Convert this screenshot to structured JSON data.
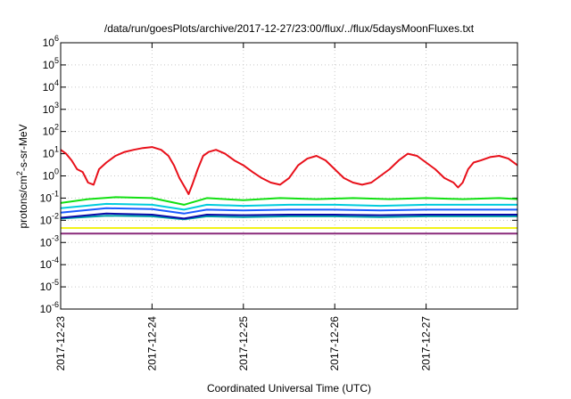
{
  "chart_data": {
    "type": "line",
    "title": "/data/run/goesPlots/archive/2017-12-27/23:00/flux/../flux/5daysMoonFluxes.txt",
    "xlabel": "Coordinated Universal Time (UTC)",
    "ylabel": {
      "base": "protons/cm",
      "sup": "2",
      "rest": "-s-sr-MeV"
    },
    "y_scale": "log",
    "ylim": [
      1e-06,
      1000000.0
    ],
    "y_ticks": [
      {
        "value": 1e-06,
        "base": "10",
        "exp": "-6"
      },
      {
        "value": 1e-05,
        "base": "10",
        "exp": "-5"
      },
      {
        "value": 0.0001,
        "base": "10",
        "exp": "-4"
      },
      {
        "value": 0.001,
        "base": "10",
        "exp": "-3"
      },
      {
        "value": 0.01,
        "base": "10",
        "exp": "-2"
      },
      {
        "value": 0.1,
        "base": "10",
        "exp": "-1"
      },
      {
        "value": 1,
        "base": "10",
        "exp": "0"
      },
      {
        "value": 10,
        "base": "10",
        "exp": "1"
      },
      {
        "value": 100,
        "base": "10",
        "exp": "2"
      },
      {
        "value": 1000,
        "base": "10",
        "exp": "3"
      },
      {
        "value": 10000,
        "base": "10",
        "exp": "4"
      },
      {
        "value": 100000,
        "base": "10",
        "exp": "5"
      },
      {
        "value": 1000000,
        "base": "10",
        "exp": "6"
      }
    ],
    "xlim": [
      0,
      5
    ],
    "x_ticks": [
      {
        "value": 0,
        "label": "2017-12-23"
      },
      {
        "value": 1,
        "label": "2017-12-24"
      },
      {
        "value": 2,
        "label": "2017-12-25"
      },
      {
        "value": 3,
        "label": "2017-12-26"
      },
      {
        "value": 4,
        "label": "2017-12-27"
      }
    ],
    "grid": true,
    "series": [
      {
        "color": "#e8101a",
        "points": [
          [
            0.0,
            15
          ],
          [
            0.06,
            10
          ],
          [
            0.12,
            5
          ],
          [
            0.18,
            2
          ],
          [
            0.24,
            1.5
          ],
          [
            0.3,
            0.5
          ],
          [
            0.36,
            0.4
          ],
          [
            0.42,
            2
          ],
          [
            0.5,
            4
          ],
          [
            0.6,
            8
          ],
          [
            0.7,
            12
          ],
          [
            0.8,
            15
          ],
          [
            0.9,
            18
          ],
          [
            1.0,
            20
          ],
          [
            1.1,
            15
          ],
          [
            1.18,
            8
          ],
          [
            1.24,
            3
          ],
          [
            1.3,
            0.8
          ],
          [
            1.36,
            0.3
          ],
          [
            1.4,
            0.15
          ],
          [
            1.44,
            0.4
          ],
          [
            1.5,
            2
          ],
          [
            1.56,
            8
          ],
          [
            1.62,
            12
          ],
          [
            1.7,
            15
          ],
          [
            1.8,
            10
          ],
          [
            1.9,
            5
          ],
          [
            2.0,
            3
          ],
          [
            2.1,
            1.5
          ],
          [
            2.2,
            0.8
          ],
          [
            2.3,
            0.5
          ],
          [
            2.4,
            0.4
          ],
          [
            2.5,
            0.8
          ],
          [
            2.6,
            3
          ],
          [
            2.7,
            6
          ],
          [
            2.8,
            8
          ],
          [
            2.9,
            5
          ],
          [
            3.0,
            2
          ],
          [
            3.1,
            0.8
          ],
          [
            3.2,
            0.5
          ],
          [
            3.3,
            0.4
          ],
          [
            3.4,
            0.5
          ],
          [
            3.5,
            1
          ],
          [
            3.6,
            2
          ],
          [
            3.7,
            5
          ],
          [
            3.8,
            10
          ],
          [
            3.9,
            8
          ],
          [
            4.0,
            4
          ],
          [
            4.1,
            2
          ],
          [
            4.2,
            0.8
          ],
          [
            4.3,
            0.5
          ],
          [
            4.35,
            0.3
          ],
          [
            4.4,
            0.5
          ],
          [
            4.46,
            2
          ],
          [
            4.52,
            4
          ],
          [
            4.6,
            5
          ],
          [
            4.7,
            7
          ],
          [
            4.8,
            8
          ],
          [
            4.9,
            6
          ],
          [
            5.0,
            3
          ]
        ]
      },
      {
        "color": "#12e012",
        "points": [
          [
            0.0,
            0.06
          ],
          [
            0.3,
            0.09
          ],
          [
            0.6,
            0.11
          ],
          [
            1.0,
            0.1
          ],
          [
            1.35,
            0.05
          ],
          [
            1.6,
            0.1
          ],
          [
            2.0,
            0.08
          ],
          [
            2.4,
            0.1
          ],
          [
            2.8,
            0.09
          ],
          [
            3.2,
            0.1
          ],
          [
            3.6,
            0.09
          ],
          [
            4.0,
            0.1
          ],
          [
            4.4,
            0.09
          ],
          [
            4.8,
            0.1
          ],
          [
            5.0,
            0.09
          ]
        ]
      },
      {
        "color": "#00ccdd",
        "points": [
          [
            0.0,
            0.035
          ],
          [
            0.5,
            0.055
          ],
          [
            1.0,
            0.05
          ],
          [
            1.35,
            0.03
          ],
          [
            1.6,
            0.05
          ],
          [
            2.0,
            0.045
          ],
          [
            2.5,
            0.05
          ],
          [
            3.0,
            0.05
          ],
          [
            3.5,
            0.045
          ],
          [
            4.0,
            0.05
          ],
          [
            4.5,
            0.05
          ],
          [
            5.0,
            0.05
          ]
        ]
      },
      {
        "color": "#1a5aff",
        "points": [
          [
            0.0,
            0.022
          ],
          [
            0.5,
            0.035
          ],
          [
            1.0,
            0.032
          ],
          [
            1.35,
            0.02
          ],
          [
            1.6,
            0.03
          ],
          [
            2.0,
            0.028
          ],
          [
            2.5,
            0.03
          ],
          [
            3.0,
            0.03
          ],
          [
            3.5,
            0.028
          ],
          [
            4.0,
            0.03
          ],
          [
            4.5,
            0.03
          ],
          [
            5.0,
            0.03
          ]
        ]
      },
      {
        "color": "#00a0a8",
        "points": [
          [
            0.0,
            0.012
          ],
          [
            0.5,
            0.016
          ],
          [
            1.0,
            0.015
          ],
          [
            1.35,
            0.011
          ],
          [
            1.6,
            0.015
          ],
          [
            2.0,
            0.014
          ],
          [
            2.5,
            0.015
          ],
          [
            3.0,
            0.015
          ],
          [
            3.5,
            0.014
          ],
          [
            4.0,
            0.015
          ],
          [
            4.5,
            0.015
          ],
          [
            5.0,
            0.015
          ]
        ]
      },
      {
        "color": "#0a0aa8",
        "points": [
          [
            0.0,
            0.013
          ],
          [
            0.5,
            0.02
          ],
          [
            1.0,
            0.018
          ],
          [
            1.35,
            0.012
          ],
          [
            1.6,
            0.018
          ],
          [
            2.0,
            0.017
          ],
          [
            2.5,
            0.018
          ],
          [
            3.0,
            0.018
          ],
          [
            3.5,
            0.017
          ],
          [
            4.0,
            0.018
          ],
          [
            4.5,
            0.018
          ],
          [
            5.0,
            0.018
          ]
        ]
      },
      {
        "color": "#f2f21a",
        "points": [
          [
            0.0,
            0.0045
          ],
          [
            1.0,
            0.0045
          ],
          [
            2.0,
            0.0045
          ],
          [
            3.0,
            0.0045
          ],
          [
            4.0,
            0.0045
          ],
          [
            5.0,
            0.0045
          ]
        ]
      },
      {
        "color": "#8a2a7a",
        "points": [
          [
            0.0,
            0.0025
          ],
          [
            1.0,
            0.0025
          ],
          [
            2.0,
            0.0025
          ],
          [
            3.0,
            0.0025
          ],
          [
            4.0,
            0.0025
          ],
          [
            5.0,
            0.0025
          ]
        ]
      }
    ]
  }
}
